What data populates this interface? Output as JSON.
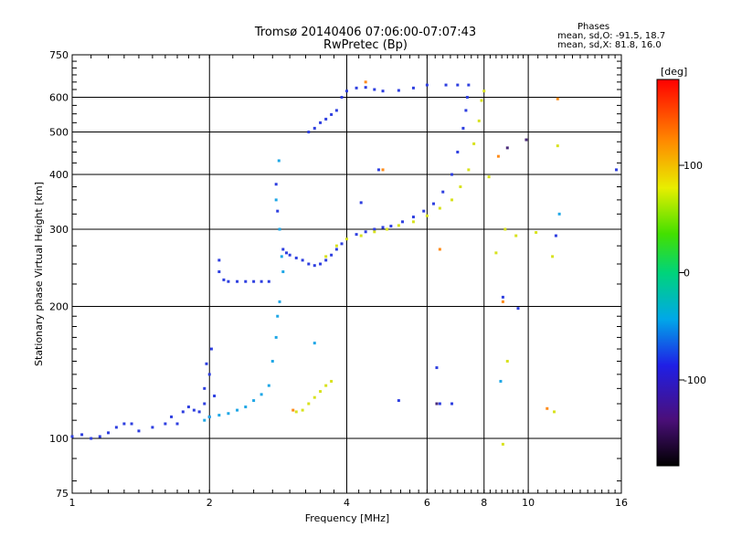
{
  "header": {
    "title": "Tromsø 20140406 07:06:00-07:07:43",
    "subtitle": "RwPretec (Bp)",
    "phases_title": "Phases",
    "phases_o": "mean, sd,O: -91.5, 18.7",
    "phases_x": "mean, sd,X: 81.8, 16.0"
  },
  "chart_data": {
    "type": "scatter",
    "title": "Tromsø 20140406 07:06:00-07:07:43",
    "subtitle": "RwPretec (Bp)",
    "xlabel": "Frequency [MHz]",
    "ylabel": "Stationary phase Virtual Height [km]",
    "x_scale": "log",
    "y_scale": "log",
    "xlim": [
      1,
      16
    ],
    "ylim": [
      75,
      750
    ],
    "x_ticks": [
      1,
      2,
      4,
      6,
      8,
      10,
      16
    ],
    "x_tick_labels": [
      "1",
      "2",
      "4",
      "6",
      "8",
      "10",
      "16"
    ],
    "y_ticks": [
      75,
      100,
      200,
      300,
      400,
      500,
      600,
      750
    ],
    "y_tick_labels": [
      "75",
      "100",
      "200",
      "300",
      "400",
      "500",
      "600",
      "750"
    ],
    "grid": true,
    "colorbar": {
      "label": "[deg]",
      "range": [
        -180,
        180
      ],
      "ticks": [
        100,
        0,
        -100
      ],
      "tick_labels": [
        "100",
        "0",
        "-100"
      ]
    },
    "series": [
      {
        "color": "#2e3fe0",
        "points": [
          [
            1.0,
            101
          ],
          [
            1.05,
            102
          ],
          [
            1.1,
            100
          ],
          [
            1.15,
            101
          ],
          [
            1.2,
            103
          ],
          [
            1.25,
            106
          ],
          [
            1.3,
            108
          ],
          [
            1.35,
            108
          ],
          [
            1.4,
            104
          ],
          [
            1.5,
            106
          ],
          [
            1.6,
            108
          ],
          [
            1.65,
            112
          ],
          [
            1.7,
            108
          ],
          [
            1.75,
            115
          ],
          [
            1.8,
            118
          ],
          [
            1.85,
            116
          ],
          [
            1.9,
            115
          ],
          [
            1.95,
            120
          ],
          [
            2.0,
            112
          ],
          [
            2.05,
            125
          ],
          [
            1.95,
            130
          ],
          [
            2.0,
            140
          ],
          [
            1.97,
            148
          ],
          [
            2.02,
            160
          ],
          [
            2.1,
            255
          ],
          [
            2.1,
            240
          ],
          [
            2.15,
            230
          ],
          [
            2.2,
            228
          ],
          [
            2.3,
            228
          ],
          [
            2.4,
            228
          ],
          [
            2.5,
            228
          ],
          [
            2.6,
            228
          ],
          [
            2.7,
            228
          ],
          [
            2.8,
            380
          ],
          [
            2.82,
            330
          ],
          [
            2.85,
            300
          ],
          [
            2.9,
            270
          ],
          [
            2.95,
            265
          ],
          [
            3.0,
            262
          ],
          [
            3.1,
            258
          ],
          [
            3.2,
            255
          ],
          [
            3.3,
            250
          ],
          [
            3.4,
            248
          ],
          [
            3.5,
            250
          ],
          [
            3.6,
            255
          ],
          [
            3.7,
            262
          ],
          [
            3.8,
            270
          ],
          [
            3.9,
            278
          ],
          [
            4.0,
            285
          ],
          [
            4.2,
            292
          ],
          [
            4.4,
            296
          ],
          [
            4.6,
            300
          ],
          [
            4.8,
            303
          ],
          [
            5.0,
            305
          ],
          [
            5.3,
            312
          ],
          [
            5.6,
            320
          ],
          [
            5.9,
            330
          ],
          [
            6.2,
            343
          ],
          [
            6.5,
            365
          ],
          [
            6.8,
            400
          ],
          [
            7.0,
            450
          ],
          [
            7.2,
            510
          ],
          [
            7.3,
            560
          ],
          [
            7.35,
            600
          ],
          [
            7.4,
            640
          ],
          [
            3.3,
            500
          ],
          [
            3.4,
            510
          ],
          [
            3.5,
            525
          ],
          [
            3.6,
            535
          ],
          [
            3.7,
            548
          ],
          [
            3.8,
            560
          ],
          [
            3.9,
            600
          ],
          [
            4.0,
            620
          ],
          [
            4.2,
            630
          ],
          [
            4.4,
            632
          ],
          [
            4.6,
            625
          ],
          [
            4.8,
            620
          ],
          [
            5.2,
            622
          ],
          [
            5.6,
            630
          ],
          [
            6.0,
            640
          ],
          [
            6.6,
            640
          ],
          [
            7.0,
            640
          ],
          [
            4.3,
            345
          ],
          [
            4.7,
            410
          ],
          [
            5.2,
            122
          ],
          [
            6.3,
            145
          ],
          [
            6.4,
            120
          ],
          [
            6.8,
            120
          ],
          [
            8.8,
            210
          ],
          [
            9.5,
            198
          ],
          [
            11.5,
            290
          ],
          [
            15.6,
            410
          ]
        ]
      },
      {
        "color": "#1fa7e6",
        "points": [
          [
            1.95,
            110
          ],
          [
            2.0,
            112
          ],
          [
            2.1,
            113
          ],
          [
            2.2,
            114
          ],
          [
            2.3,
            116
          ],
          [
            2.4,
            118
          ],
          [
            2.5,
            122
          ],
          [
            2.6,
            126
          ],
          [
            2.7,
            132
          ],
          [
            2.75,
            150
          ],
          [
            2.8,
            170
          ],
          [
            2.82,
            190
          ],
          [
            2.85,
            205
          ],
          [
            2.8,
            350
          ],
          [
            2.85,
            300
          ],
          [
            2.88,
            260
          ],
          [
            2.9,
            240
          ],
          [
            3.4,
            165
          ],
          [
            2.84,
            430
          ],
          [
            8.7,
            135
          ],
          [
            11.7,
            325
          ]
        ]
      },
      {
        "color": "#d8e21e",
        "points": [
          [
            3.6,
            260
          ],
          [
            3.8,
            275
          ],
          [
            4.0,
            285
          ],
          [
            4.3,
            290
          ],
          [
            4.6,
            296
          ],
          [
            4.9,
            300
          ],
          [
            5.2,
            306
          ],
          [
            5.6,
            312
          ],
          [
            6.0,
            322
          ],
          [
            6.4,
            335
          ],
          [
            6.8,
            350
          ],
          [
            7.1,
            375
          ],
          [
            7.4,
            410
          ],
          [
            7.6,
            470
          ],
          [
            7.8,
            530
          ],
          [
            7.9,
            590
          ],
          [
            8.0,
            620
          ],
          [
            3.1,
            115
          ],
          [
            3.2,
            116
          ],
          [
            3.3,
            120
          ],
          [
            3.4,
            124
          ],
          [
            3.5,
            128
          ],
          [
            3.6,
            132
          ],
          [
            3.7,
            135
          ],
          [
            8.2,
            395
          ],
          [
            8.5,
            265
          ],
          [
            8.9,
            300
          ],
          [
            9.4,
            290
          ],
          [
            10.4,
            295
          ],
          [
            11.3,
            260
          ],
          [
            11.6,
            465
          ],
          [
            11.4,
            115
          ],
          [
            8.8,
            97
          ],
          [
            9.0,
            150
          ]
        ]
      },
      {
        "color": "#ff8c1a",
        "points": [
          [
            3.05,
            116
          ],
          [
            4.8,
            410
          ],
          [
            4.4,
            650
          ],
          [
            8.6,
            440
          ],
          [
            11.6,
            595
          ],
          [
            6.4,
            270
          ],
          [
            8.8,
            205
          ],
          [
            11.0,
            117
          ]
        ]
      },
      {
        "color": "#4a2b7a",
        "points": [
          [
            6.3,
            120
          ],
          [
            9.0,
            460
          ],
          [
            9.9,
            480
          ]
        ]
      }
    ]
  }
}
